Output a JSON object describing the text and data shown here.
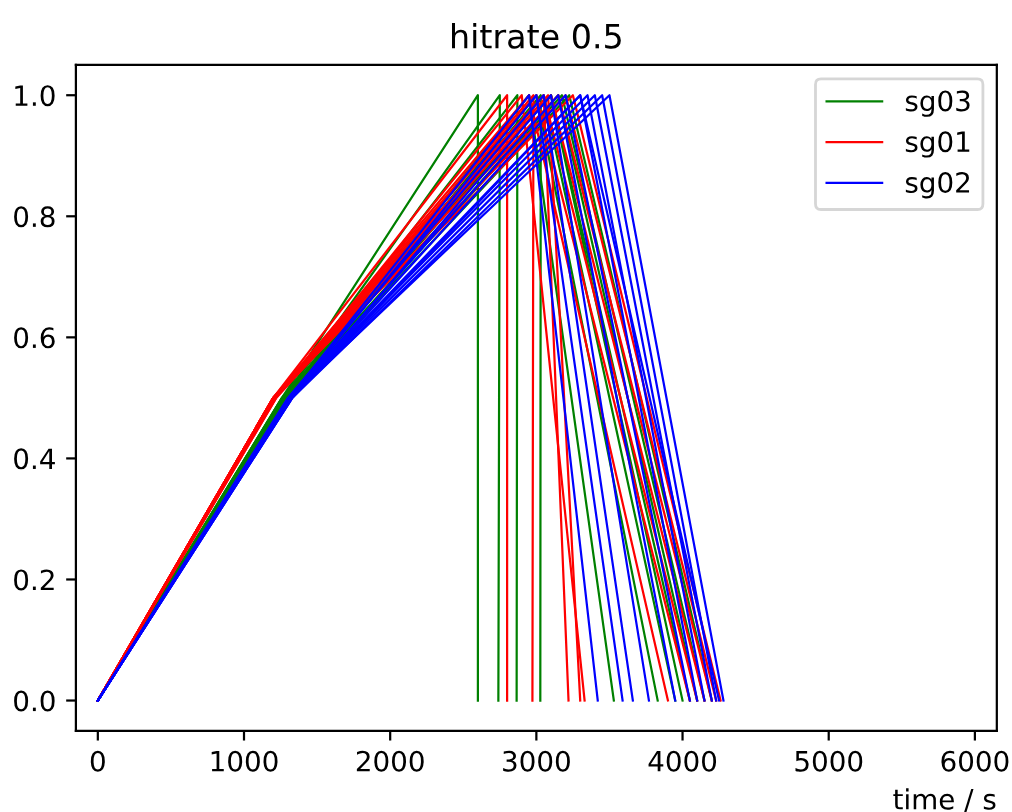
{
  "chart_data": {
    "type": "line",
    "title": "hitrate 0.5",
    "xlabel": "time / s",
    "xlim": [
      -150,
      6150
    ],
    "ylim": [
      -0.05,
      1.05
    ],
    "xticks": [
      0,
      1000,
      2000,
      3000,
      4000,
      5000,
      6000
    ],
    "yticks": [
      {
        "value": 0,
        "label": "0.0"
      },
      {
        "value": 0.2,
        "label": "0.2"
      },
      {
        "value": 0.4,
        "label": "0.4"
      },
      {
        "value": 0.6,
        "label": "0.6"
      },
      {
        "value": 0.8,
        "label": "0.8"
      },
      {
        "value": 1,
        "label": "1.0"
      }
    ],
    "grid": false,
    "legend": "top right",
    "marker": "none",
    "line_style": "solid",
    "series": [
      {
        "name": "sg03",
        "color": "#008000",
        "x": [
          0,
          1260,
          2600,
          2600
        ],
        "values": [
          0,
          0.5,
          1,
          0
        ]
      },
      {
        "color": "#008000",
        "x": [
          0,
          1270,
          2750,
          2740
        ],
        "values": [
          0,
          0.5,
          1,
          0
        ]
      },
      {
        "color": "#008000",
        "x": [
          0,
          1260,
          2870,
          2865
        ],
        "values": [
          0,
          0.5,
          1,
          0
        ]
      },
      {
        "color": "#008000",
        "x": [
          0,
          1280,
          3030,
          3027
        ],
        "values": [
          0,
          0.5,
          1,
          0
        ]
      },
      {
        "color": "#008000",
        "x": [
          0,
          1270,
          2950,
          3530
        ],
        "values": [
          0,
          0.5,
          1,
          0
        ]
      },
      {
        "color": "#008000",
        "x": [
          0,
          1280,
          3000,
          3830
        ],
        "values": [
          0,
          0.5,
          1,
          0
        ]
      },
      {
        "color": "#008000",
        "x": [
          0,
          1290,
          3050,
          3950
        ],
        "values": [
          0,
          0.5,
          1,
          0
        ]
      },
      {
        "color": "#008000",
        "x": [
          0,
          1260,
          3100,
          4050
        ],
        "values": [
          0,
          0.5,
          1,
          0
        ]
      },
      {
        "color": "#008000",
        "x": [
          0,
          1300,
          3150,
          4100
        ],
        "values": [
          0,
          0.5,
          1,
          0
        ]
      },
      {
        "color": "#008000",
        "x": [
          0,
          1280,
          3175,
          4150
        ],
        "values": [
          0,
          0.5,
          1,
          0
        ]
      },
      {
        "color": "#008000",
        "x": [
          0,
          1270,
          3100,
          4000
        ],
        "values": [
          0,
          0.5,
          1,
          0
        ]
      },
      {
        "color": "#008000",
        "x": [
          0,
          1290,
          3225,
          4200
        ],
        "values": [
          0,
          0.5,
          1,
          0
        ]
      },
      {
        "name": "sg01",
        "color": "#ff0000",
        "x": [
          0,
          1200,
          2800,
          2800
        ],
        "values": [
          0,
          0.5,
          1,
          0
        ]
      },
      {
        "color": "#ff0000",
        "x": [
          0,
          1200,
          2980,
          2973
        ],
        "values": [
          0,
          0.5,
          1,
          0
        ]
      },
      {
        "color": "#ff0000",
        "x": [
          0,
          1210,
          3050,
          3220
        ],
        "values": [
          0,
          0.5,
          1,
          0
        ]
      },
      {
        "color": "#ff0000",
        "x": [
          0,
          1200,
          3080,
          3300
        ],
        "values": [
          0,
          0.5,
          1,
          0
        ]
      },
      {
        "color": "#ff0000",
        "x": [
          0,
          1220,
          2900,
          3330
        ],
        "values": [
          0,
          0.5,
          1,
          0
        ]
      },
      {
        "color": "#ff0000",
        "x": [
          0,
          1200,
          2950,
          3900
        ],
        "values": [
          0,
          0.5,
          1,
          0
        ]
      },
      {
        "color": "#ff0000",
        "x": [
          0,
          1210,
          3000,
          4050
        ],
        "values": [
          0,
          0.5,
          1,
          0
        ]
      },
      {
        "color": "#ff0000",
        "x": [
          0,
          1200,
          3050,
          4100
        ],
        "values": [
          0,
          0.5,
          1,
          0
        ]
      },
      {
        "color": "#ff0000",
        "x": [
          0,
          1220,
          3100,
          4150
        ],
        "values": [
          0,
          0.5,
          1,
          0
        ]
      },
      {
        "color": "#ff0000",
        "x": [
          0,
          1200,
          3150,
          4200
        ],
        "values": [
          0,
          0.5,
          1,
          0
        ]
      },
      {
        "color": "#ff0000",
        "x": [
          0,
          1210,
          3200,
          4230
        ],
        "values": [
          0,
          0.5,
          1,
          0
        ]
      },
      {
        "color": "#ff0000",
        "x": [
          0,
          1200,
          3250,
          4260
        ],
        "values": [
          0,
          0.5,
          1,
          0
        ]
      },
      {
        "name": "sg02",
        "color": "#0000ff",
        "x": [
          0,
          1310,
          2950,
          3420
        ],
        "values": [
          0,
          0.5,
          1,
          0
        ]
      },
      {
        "color": "#0000ff",
        "x": [
          0,
          1320,
          3000,
          3590
        ],
        "values": [
          0,
          0.5,
          1,
          0
        ]
      },
      {
        "color": "#0000ff",
        "x": [
          0,
          1300,
          3050,
          3660
        ],
        "values": [
          0,
          0.5,
          1,
          0
        ]
      },
      {
        "color": "#0000ff",
        "x": [
          0,
          1330,
          3100,
          3770
        ],
        "values": [
          0,
          0.5,
          1,
          0
        ]
      },
      {
        "color": "#0000ff",
        "x": [
          0,
          1310,
          3150,
          3950
        ],
        "values": [
          0,
          0.5,
          1,
          0
        ]
      },
      {
        "color": "#0000ff",
        "x": [
          0,
          1320,
          3200,
          4050
        ],
        "values": [
          0,
          0.5,
          1,
          0
        ]
      },
      {
        "color": "#0000ff",
        "x": [
          0,
          1330,
          3300,
          4100
        ],
        "values": [
          0,
          0.5,
          1,
          0
        ]
      },
      {
        "color": "#0000ff",
        "x": [
          0,
          1310,
          3350,
          4150
        ],
        "values": [
          0,
          0.5,
          1,
          0
        ]
      },
      {
        "color": "#0000ff",
        "x": [
          0,
          1320,
          3400,
          4200
        ],
        "values": [
          0,
          0.5,
          1,
          0
        ]
      },
      {
        "color": "#0000ff",
        "x": [
          0,
          1330,
          3450,
          4230
        ],
        "values": [
          0,
          0.5,
          1,
          0
        ]
      },
      {
        "color": "#0000ff",
        "x": [
          0,
          1320,
          3500,
          4280
        ],
        "values": [
          0,
          0.5,
          1,
          0
        ]
      },
      {
        "color": "#0000ff",
        "x": [
          0,
          1310,
          3300,
          4250
        ],
        "values": [
          0,
          0.5,
          1,
          0
        ]
      }
    ]
  }
}
